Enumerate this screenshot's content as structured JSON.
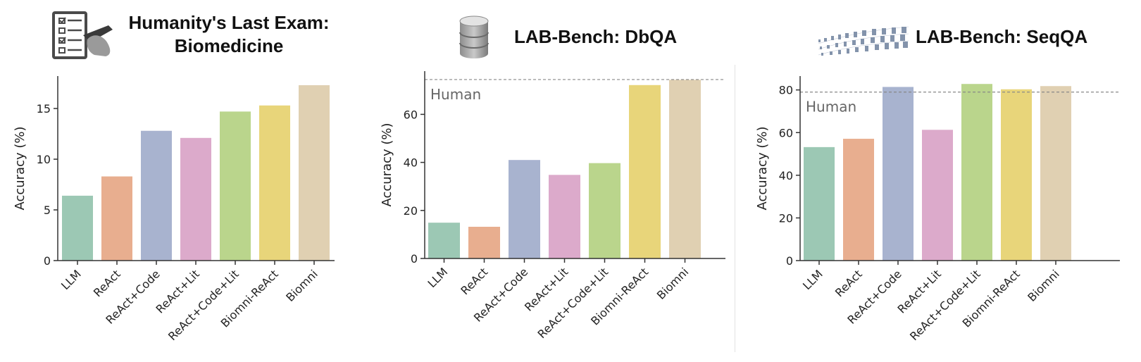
{
  "chart_data": [
    {
      "type": "bar",
      "title": "Humanity's Last Exam: Biomedicine",
      "title_lines": [
        "Humanity's Last Exam:",
        "Biomedicine"
      ],
      "ylabel": "Accuracy (%)",
      "xlabel": "",
      "categories": [
        "LLM",
        "ReAct",
        "ReAct+Code",
        "ReAct+Lit",
        "ReAct+Code+Lit",
        "Biomni-ReAct",
        "Biomni"
      ],
      "values": [
        6.4,
        8.3,
        12.8,
        12.1,
        14.7,
        15.3,
        17.3
      ],
      "colors": [
        "#9cc8b4",
        "#e8ae8f",
        "#a8b3cf",
        "#dcaacb",
        "#bad58c",
        "#e8d57a",
        "#e0d0b2"
      ],
      "ylim": [
        0,
        18.2
      ],
      "yticks": [
        0,
        5,
        10,
        15
      ],
      "human_baseline": null,
      "icon": "checklist-icon"
    },
    {
      "type": "bar",
      "title": "LAB-Bench: DbQA",
      "title_lines": [
        "LAB-Bench: DbQA"
      ],
      "ylabel": "Accuracy (%)",
      "xlabel": "",
      "categories": [
        "LLM",
        "ReAct",
        "ReAct+Code",
        "ReAct+Lit",
        "ReAct+Code+Lit",
        "Biomni-ReAct",
        "Biomni"
      ],
      "values": [
        14.9,
        13.2,
        41.0,
        34.8,
        39.7,
        72.2,
        74.4
      ],
      "colors": [
        "#9cc8b4",
        "#e8ae8f",
        "#a8b3cf",
        "#dcaacb",
        "#bad58c",
        "#e8d57a",
        "#e0d0b2"
      ],
      "ylim": [
        0,
        78
      ],
      "yticks": [
        0,
        20,
        40,
        60
      ],
      "human_baseline": {
        "label": "Human",
        "value": 74.5
      },
      "icon": "database-icon"
    },
    {
      "type": "bar",
      "title": "LAB-Bench: SeqQA",
      "title_lines": [
        "LAB-Bench: SeqQA"
      ],
      "ylabel": "Accuracy (%)",
      "xlabel": "",
      "categories": [
        "LLM",
        "ReAct",
        "ReAct+Code",
        "ReAct+Lit",
        "ReAct+Code+Lit",
        "Biomni-ReAct",
        "Biomni"
      ],
      "values": [
        53.2,
        57.1,
        81.4,
        61.3,
        82.8,
        80.3,
        81.8
      ],
      "colors": [
        "#9cc8b4",
        "#e8ae8f",
        "#a8b3cf",
        "#dcaacb",
        "#bad58c",
        "#e8d57a",
        "#e0d0b2"
      ],
      "ylim": [
        0,
        86.5
      ],
      "yticks": [
        0,
        20,
        40,
        60,
        80
      ],
      "human_baseline": {
        "label": "Human",
        "value": 79
      },
      "icon": "dna-sequence-icon"
    }
  ]
}
